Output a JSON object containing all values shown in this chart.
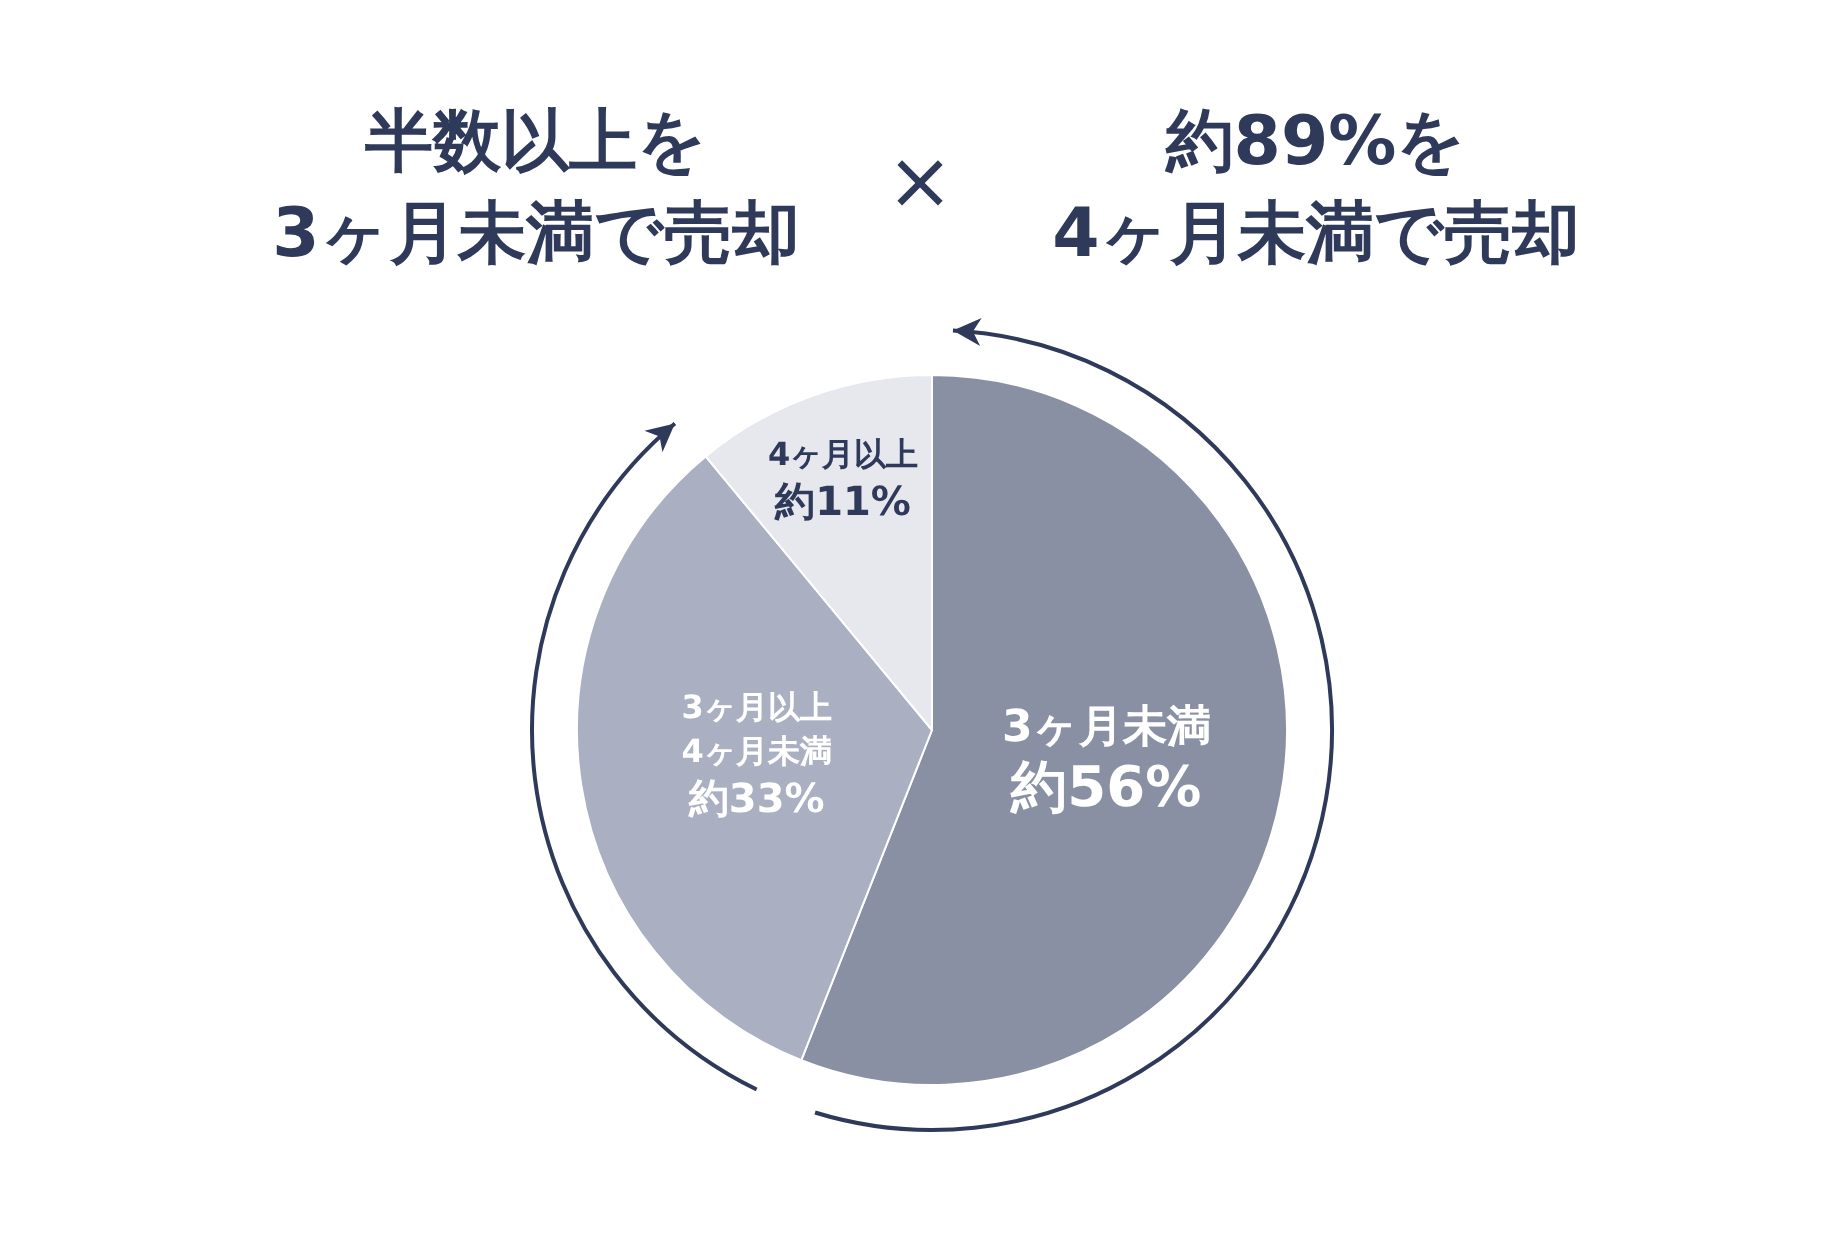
{
  "chart_data": {
    "type": "pie",
    "title": "半数以上を\n3ヶ月未満で売却",
    "subtitle": "約89%を\n4ヶ月未満で売却",
    "annotations": [
      "×"
    ],
    "categories": [
      "3ヶ月未満",
      "3ヶ月以上\n4ヶ月未満",
      "4ヶ月以上"
    ],
    "values": [
      56,
      33,
      11
    ],
    "value_labels": [
      "約56%",
      "約33%",
      "約11%"
    ],
    "colors": [
      "#8a90a3",
      "#aab0c2",
      "#e6e8ee"
    ],
    "legend": false
  }
}
